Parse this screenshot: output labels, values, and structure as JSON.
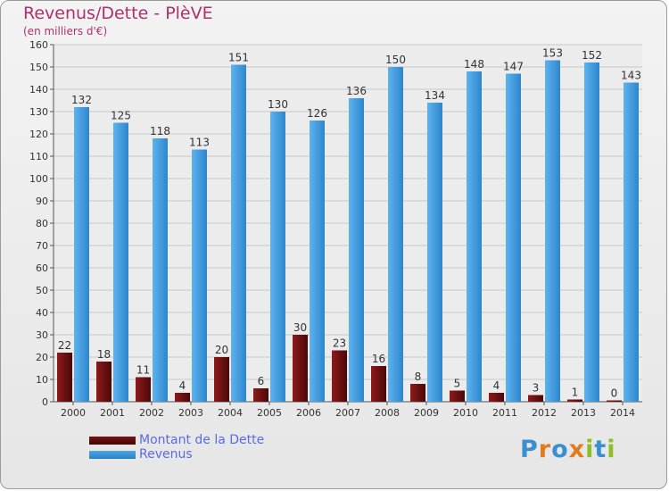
{
  "header": {
    "title": "Revenus/Dette - PlèVE",
    "subtitle": "(en milliers d'€)"
  },
  "colors": {
    "title": "#b0306a",
    "dette": "#7a1212",
    "revenus": "#4ea6e6",
    "legend_text": "#5b6ae6"
  },
  "legend": [
    {
      "label": "Montant de la Dette",
      "color": "#7a1212"
    },
    {
      "label": "Revenus",
      "color": "#4ea6e6"
    }
  ],
  "logo": {
    "text": "Proxiti",
    "letter_colors": [
      "#3a8fd0",
      "#e07b1e",
      "#3a8fd0",
      "#e07b1e",
      "#8cbf26",
      "#3a8fd0",
      "#8cbf26"
    ]
  },
  "chart_data": {
    "type": "bar",
    "categories": [
      "2000",
      "2001",
      "2002",
      "2003",
      "2004",
      "2005",
      "2006",
      "2007",
      "2008",
      "2009",
      "2010",
      "2011",
      "2012",
      "2013",
      "2014"
    ],
    "series": [
      {
        "name": "Montant de la Dette",
        "color": "#7a1212",
        "values": [
          22,
          18,
          11,
          4,
          20,
          6,
          30,
          23,
          16,
          8,
          5,
          4,
          3,
          1,
          0
        ]
      },
      {
        "name": "Revenus",
        "color": "#4ea6e6",
        "values": [
          132,
          125,
          118,
          113,
          151,
          130,
          126,
          136,
          150,
          134,
          148,
          147,
          153,
          152,
          143
        ]
      }
    ],
    "ylim": [
      0,
      160
    ],
    "ytick_step": 10,
    "grid": true,
    "legend_position": "bottom-left",
    "xlabel": "",
    "ylabel": ""
  }
}
